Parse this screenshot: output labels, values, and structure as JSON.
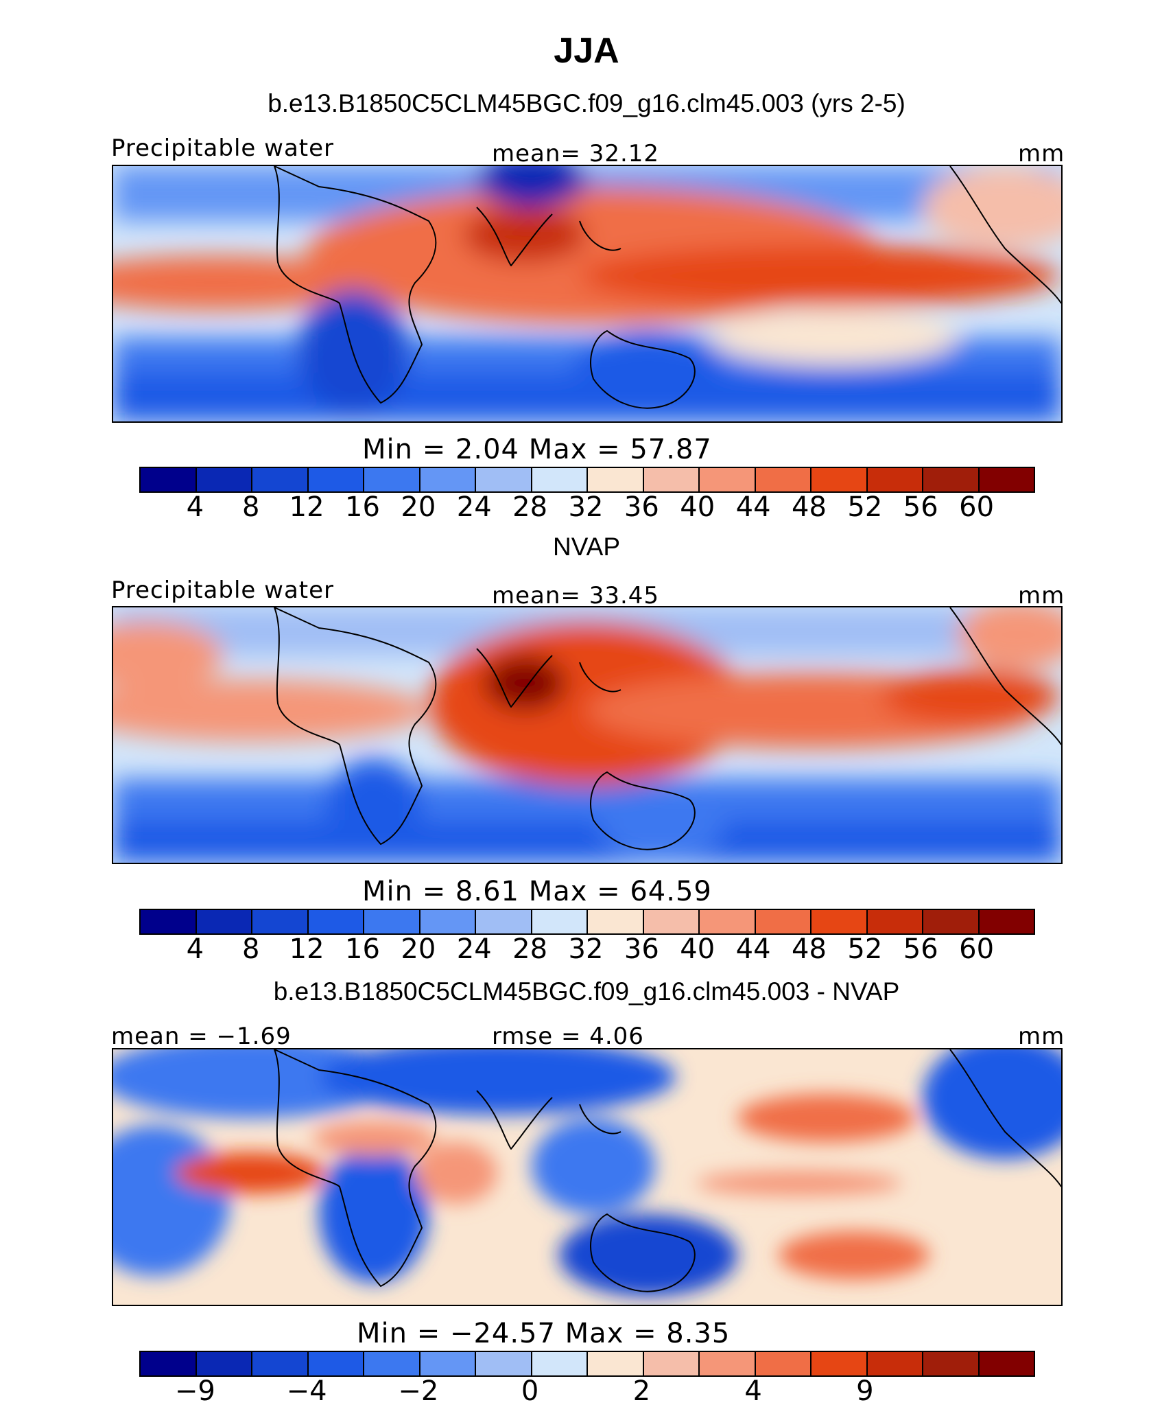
{
  "figure": {
    "title": "JJA",
    "subtitle": "b.e13.B1850C5CLM45BGC.f09_g16.clm45.003 (yrs 2-5)"
  },
  "panels": [
    {
      "title": "",
      "left_label": "Precipitable water",
      "center_label": "mean=   32.12",
      "right_label": "mm",
      "min_max": "Min  =      2.04  Max  =    57.87"
    },
    {
      "title": "NVAP",
      "left_label": "Precipitable water",
      "center_label": "mean=   33.45",
      "right_label": "mm",
      "min_max": "Min  =      8.61  Max  =    64.59"
    },
    {
      "title": "b.e13.B1850C5CLM45BGC.f09_g16.clm45.003 - NVAP",
      "left_label": "mean =   −1.69",
      "center_label": "rmse =    4.06",
      "right_label": "mm",
      "min_max": "Min  = −24.57  Max  =      8.35"
    }
  ],
  "colorbar_abs": {
    "colors": [
      "#00008c",
      "#0a28b4",
      "#1446d2",
      "#1e5ae6",
      "#3c78f0",
      "#6496f5",
      "#a0bef5",
      "#d2e6fa",
      "#fae6d2",
      "#f5beaa",
      "#f59678",
      "#f06e46",
      "#e64614",
      "#c82d0a",
      "#a01e0a",
      "#820000"
    ],
    "ticks": [
      "4",
      "8",
      "12",
      "16",
      "20",
      "24",
      "28",
      "32",
      "36",
      "40",
      "44",
      "48",
      "52",
      "56",
      "60"
    ]
  },
  "colorbar_diff": {
    "colors": [
      "#00008c",
      "#0a28b4",
      "#1446d2",
      "#1e5ae6",
      "#3c78f0",
      "#6496f5",
      "#a0bef5",
      "#d2e6fa",
      "#fae6d2",
      "#f5beaa",
      "#f59678",
      "#f06e46",
      "#e64614",
      "#c82d0a",
      "#a01e0a",
      "#820000"
    ],
    "ticks": [
      "−9",
      "",
      "−4",
      "",
      "−2",
      "",
      "0",
      "",
      "2",
      "",
      "4",
      "",
      "9",
      "",
      ""
    ]
  }
}
